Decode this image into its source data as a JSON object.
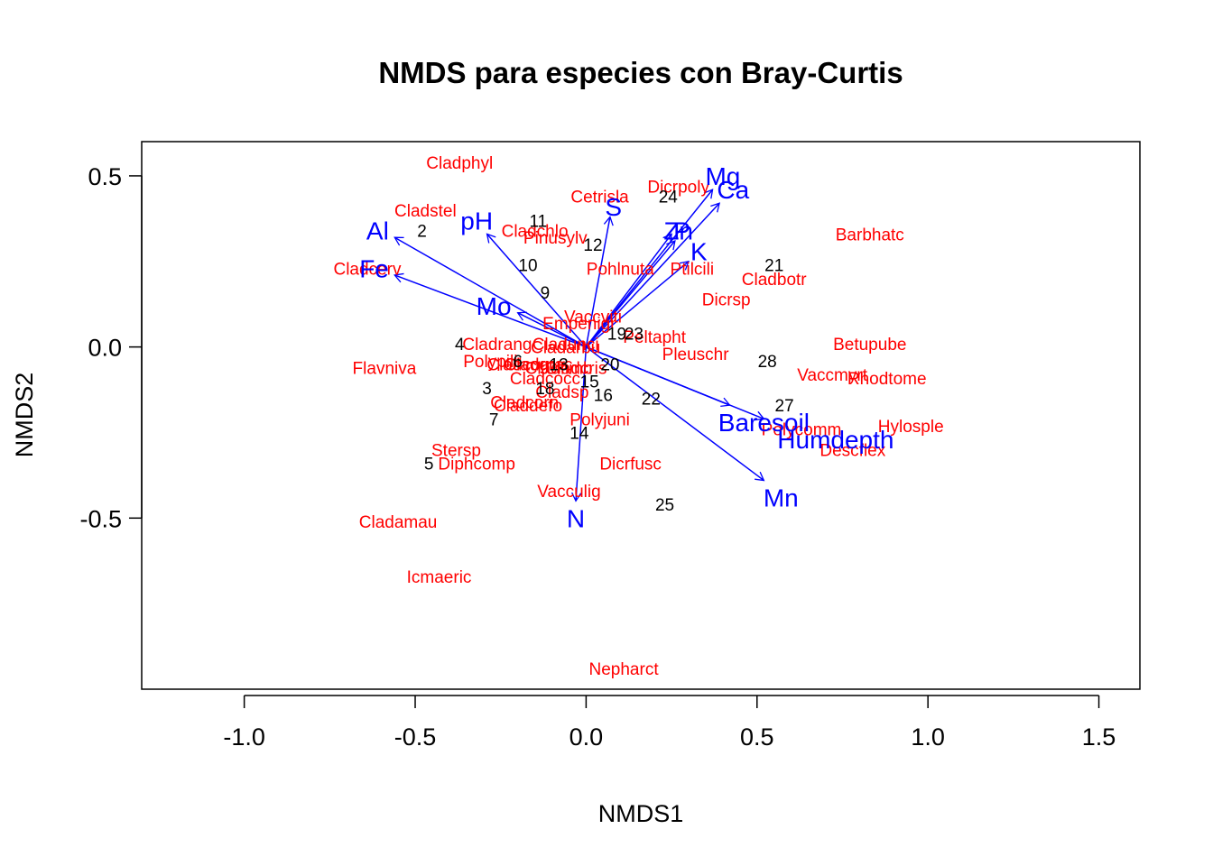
{
  "colors": {
    "species": "#FF0000",
    "sites": "#000000",
    "vectors": "#0000FF",
    "axes": "#000000"
  },
  "chart_data": {
    "type": "scatter",
    "title": "NMDS para especies con Bray-Curtis",
    "xlabel": "NMDS1",
    "ylabel": "NMDS2",
    "xlim": [
      -1.3,
      1.62
    ],
    "ylim": [
      -1.0,
      0.6
    ],
    "xticks": [
      -1.0,
      -0.5,
      0.0,
      0.5,
      1.0,
      1.5
    ],
    "xtick_labels": [
      "-1.0",
      "-0.5",
      "0.0",
      "0.5",
      "1.0",
      "1.5"
    ],
    "yticks": [
      0.5,
      0.0,
      -0.5
    ],
    "ytick_labels": [
      "0.5",
      "0.0",
      "-0.5"
    ],
    "grid": false,
    "species": [
      {
        "label": "Cladphyl",
        "x": -0.37,
        "y": 0.54
      },
      {
        "label": "Cladstel",
        "x": -0.47,
        "y": 0.4
      },
      {
        "label": "Cladchlo",
        "x": -0.15,
        "y": 0.34
      },
      {
        "label": "Pinusylv",
        "x": -0.09,
        "y": 0.32
      },
      {
        "label": "Cetrisla",
        "x": 0.04,
        "y": 0.44
      },
      {
        "label": "Dicrpoly",
        "x": 0.27,
        "y": 0.47
      },
      {
        "label": "Barbhatc",
        "x": 0.83,
        "y": 0.33
      },
      {
        "label": "Cladcerv",
        "x": -0.64,
        "y": 0.23
      },
      {
        "label": "Pohlnuta",
        "x": 0.1,
        "y": 0.23
      },
      {
        "label": "Ptilcili",
        "x": 0.31,
        "y": 0.23
      },
      {
        "label": "Cladbotr",
        "x": 0.55,
        "y": 0.2
      },
      {
        "label": "Dicrsp",
        "x": 0.41,
        "y": 0.14
      },
      {
        "label": "Vaccviti",
        "x": 0.02,
        "y": 0.09
      },
      {
        "label": "Empenigr",
        "x": -0.02,
        "y": 0.07
      },
      {
        "label": "Peltapht",
        "x": 0.2,
        "y": 0.03
      },
      {
        "label": "Betupube",
        "x": 0.83,
        "y": 0.01
      },
      {
        "label": "Cladrang",
        "x": -0.26,
        "y": 0.01
      },
      {
        "label": "Cladunci",
        "x": -0.06,
        "y": 0.01
      },
      {
        "label": "Cladarbu",
        "x": -0.06,
        "y": -0.0
      },
      {
        "label": "Pleuschr",
        "x": 0.32,
        "y": -0.02
      },
      {
        "label": "Polypili",
        "x": -0.28,
        "y": -0.04
      },
      {
        "label": "Cladcorn",
        "x": -0.19,
        "y": -0.05
      },
      {
        "label": "Cladgrac",
        "x": -0.14,
        "y": -0.05
      },
      {
        "label": "Cladfimb",
        "x": -0.08,
        "y": -0.06
      },
      {
        "label": "Cladcris",
        "x": -0.03,
        "y": -0.06
      },
      {
        "label": "Flavniva",
        "x": -0.59,
        "y": -0.06
      },
      {
        "label": "Vaccmyrt",
        "x": 0.72,
        "y": -0.08
      },
      {
        "label": "Rhodtome",
        "x": 0.88,
        "y": -0.09
      },
      {
        "label": "Cladcocc",
        "x": -0.12,
        "y": -0.09
      },
      {
        "label": "Cladsp",
        "x": -0.07,
        "y": -0.13
      },
      {
        "label": "Cladcorn",
        "x": -0.18,
        "y": -0.16
      },
      {
        "label": "Claddefo",
        "x": -0.17,
        "y": -0.17
      },
      {
        "label": "Polyjuni",
        "x": 0.04,
        "y": -0.21
      },
      {
        "label": "Polycomm",
        "x": 0.63,
        "y": -0.24
      },
      {
        "label": "Hylosple",
        "x": 0.95,
        "y": -0.23
      },
      {
        "label": "Descflex",
        "x": 0.78,
        "y": -0.3
      },
      {
        "label": "Stersp",
        "x": -0.38,
        "y": -0.3
      },
      {
        "label": "Diphcomp",
        "x": -0.32,
        "y": -0.34
      },
      {
        "label": "Dicrfusc",
        "x": 0.13,
        "y": -0.34
      },
      {
        "label": "Vacculig",
        "x": -0.05,
        "y": -0.42
      },
      {
        "label": "Cladamau",
        "x": -0.55,
        "y": -0.51
      },
      {
        "label": "Icmaeric",
        "x": -0.43,
        "y": -0.67
      },
      {
        "label": "Nepharct",
        "x": 0.11,
        "y": -0.94
      }
    ],
    "sites": [
      {
        "label": "2",
        "x": -0.48,
        "y": 0.34
      },
      {
        "label": "11",
        "x": -0.14,
        "y": 0.37
      },
      {
        "label": "24",
        "x": 0.24,
        "y": 0.44
      },
      {
        "label": "12",
        "x": 0.02,
        "y": 0.3
      },
      {
        "label": "10",
        "x": -0.17,
        "y": 0.24
      },
      {
        "label": "9",
        "x": -0.12,
        "y": 0.16
      },
      {
        "label": "21",
        "x": 0.55,
        "y": 0.24
      },
      {
        "label": "19",
        "x": 0.09,
        "y": 0.04
      },
      {
        "label": "23",
        "x": 0.14,
        "y": 0.04
      },
      {
        "label": "4",
        "x": -0.37,
        "y": 0.01
      },
      {
        "label": "28",
        "x": 0.53,
        "y": -0.04
      },
      {
        "label": "6",
        "x": -0.2,
        "y": -0.04
      },
      {
        "label": "13",
        "x": -0.08,
        "y": -0.05
      },
      {
        "label": "20",
        "x": 0.07,
        "y": -0.05
      },
      {
        "label": "15",
        "x": 0.01,
        "y": -0.1
      },
      {
        "label": "3",
        "x": -0.29,
        "y": -0.12
      },
      {
        "label": "18",
        "x": -0.12,
        "y": -0.12
      },
      {
        "label": "16",
        "x": 0.05,
        "y": -0.14
      },
      {
        "label": "22",
        "x": 0.19,
        "y": -0.15
      },
      {
        "label": "27",
        "x": 0.58,
        "y": -0.17
      },
      {
        "label": "7",
        "x": -0.27,
        "y": -0.21
      },
      {
        "label": "14",
        "x": -0.02,
        "y": -0.25
      },
      {
        "label": "5",
        "x": -0.46,
        "y": -0.34
      },
      {
        "label": "25",
        "x": 0.23,
        "y": -0.46
      }
    ],
    "env_vectors": [
      {
        "label": "Al",
        "x": -0.56,
        "y": 0.32,
        "lx": -0.61,
        "ly": 0.34
      },
      {
        "label": "Fe",
        "x": -0.56,
        "y": 0.21,
        "lx": -0.62,
        "ly": 0.23
      },
      {
        "label": "pH",
        "x": -0.29,
        "y": 0.33,
        "lx": -0.32,
        "ly": 0.37
      },
      {
        "label": "Mo",
        "x": -0.2,
        "y": 0.1,
        "lx": -0.27,
        "ly": 0.12
      },
      {
        "label": "S",
        "x": 0.07,
        "y": 0.38,
        "lx": 0.08,
        "ly": 0.41
      },
      {
        "label": "Zn",
        "x": 0.25,
        "y": 0.33,
        "lx": 0.27,
        "ly": 0.34
      },
      {
        "label": "P",
        "x": 0.26,
        "y": 0.31,
        "lx": 0.28,
        "ly": 0.34
      },
      {
        "label": "K",
        "x": 0.3,
        "y": 0.25,
        "lx": 0.33,
        "ly": 0.28
      },
      {
        "label": "Mg",
        "x": 0.37,
        "y": 0.46,
        "lx": 0.4,
        "ly": 0.5
      },
      {
        "label": "Ca",
        "x": 0.39,
        "y": 0.42,
        "lx": 0.43,
        "ly": 0.46
      },
      {
        "label": "Baresoil",
        "x": 0.42,
        "y": -0.17,
        "lx": 0.52,
        "ly": -0.22
      },
      {
        "label": "Humdepth",
        "x": 0.52,
        "y": -0.21,
        "lx": 0.73,
        "ly": -0.27
      },
      {
        "label": "Mn",
        "x": 0.52,
        "y": -0.39,
        "lx": 0.57,
        "ly": -0.44
      },
      {
        "label": "N",
        "x": -0.03,
        "y": -0.45,
        "lx": -0.03,
        "ly": -0.5
      }
    ]
  }
}
